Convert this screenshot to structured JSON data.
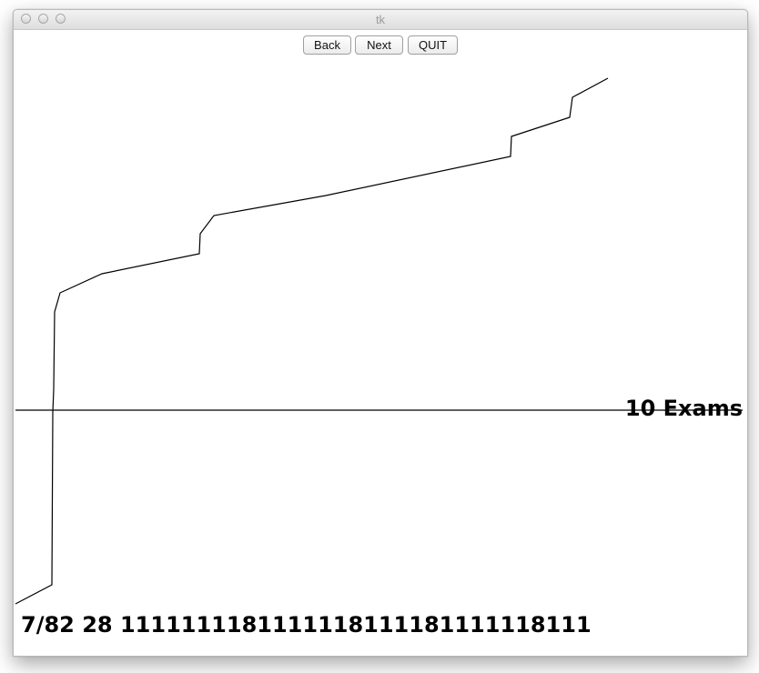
{
  "window": {
    "title": "tk"
  },
  "toolbar": {
    "back_label": "Back",
    "next_label": "Next",
    "quit_label": "QUIT"
  },
  "canvas": {
    "exams_label": "10 Exams",
    "status_text": "7/82 28 1111111181111118111181111118111"
  },
  "colors": {
    "line": "#000000",
    "background": "#ffffff"
  }
}
